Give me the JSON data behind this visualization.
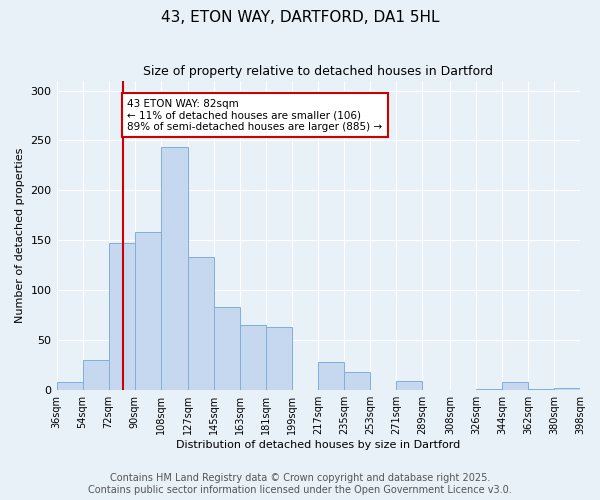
{
  "title": "43, ETON WAY, DARTFORD, DA1 5HL",
  "subtitle": "Size of property relative to detached houses in Dartford",
  "xlabel": "Distribution of detached houses by size in Dartford",
  "ylabel": "Number of detached properties",
  "bar_color": "#c5d8f0",
  "bar_edge_color": "#7fb0d8",
  "background_color": "#e8f0f8",
  "grid_color": "#ffffff",
  "vline_x": 82,
  "vline_color": "#cc0000",
  "annotation_text": "43 ETON WAY: 82sqm\n← 11% of detached houses are smaller (106)\n89% of semi-detached houses are larger (885) →",
  "annotation_box_edge": "#cc0000",
  "bin_edges": [
    36,
    54,
    72,
    90,
    108,
    127,
    145,
    163,
    181,
    199,
    217,
    235,
    253,
    271,
    289,
    308,
    326,
    344,
    362,
    380,
    398
  ],
  "bin_values": [
    8,
    30,
    147,
    158,
    243,
    133,
    83,
    65,
    63,
    0,
    28,
    18,
    0,
    9,
    0,
    0,
    1,
    8,
    1,
    2
  ],
  "xlim": [
    36,
    398
  ],
  "ylim": [
    0,
    310
  ],
  "yticks": [
    0,
    50,
    100,
    150,
    200,
    250,
    300
  ],
  "footer_text": "Contains HM Land Registry data © Crown copyright and database right 2025.\nContains public sector information licensed under the Open Government Licence v3.0.",
  "footer_fontsize": 7,
  "title_fontsize": 11,
  "subtitle_fontsize": 9,
  "ylabel_fontsize": 8,
  "xlabel_fontsize": 8,
  "tick_fontsize": 7
}
